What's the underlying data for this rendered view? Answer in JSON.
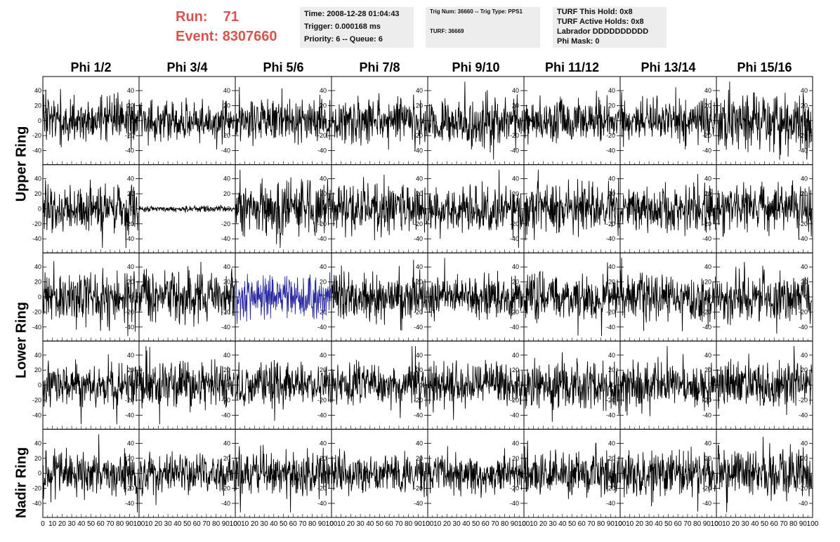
{
  "header": {
    "run_label": "Run:",
    "run_value": "71",
    "event_label": "Event:",
    "event_value": "8307660",
    "time": "Time: 2008-12-28 01:04:43",
    "trigger": "Trigger: 0.000168 ms",
    "priority": "Priority: 6 -- Queue: 6",
    "trig_num": "Trig Num: 36660 -- Trig Type: PPS1",
    "turf": "TURF: 36669",
    "turf_hold": "TURF This Hold: 0x8",
    "turf_active": "TURF Active Holds: 0x8",
    "labrador": "Labrador DDDDDDDDDD",
    "phi_mask": "Phi Mask: 0"
  },
  "columns": [
    "Phi 1/2",
    "Phi 3/4",
    "Phi 5/6",
    "Phi 7/8",
    "Phi 9/10",
    "Phi 11/12",
    "Phi 13/14",
    "Phi 15/16"
  ],
  "ring_labels": [
    "Upper Ring",
    "Lower Ring",
    "Nadir Ring"
  ],
  "colors": {
    "trace": "#000000",
    "highlight": "#2a2aa0",
    "run_text": "#d9534f",
    "info_bg": "#ededed"
  },
  "chart_data": {
    "type": "line",
    "description_rows": 5,
    "description_cols": 8,
    "xlim": [
      0,
      100
    ],
    "ylim": [
      -55,
      55
    ],
    "x_ticks": [
      0,
      10,
      20,
      30,
      40,
      50,
      60,
      70,
      80,
      90,
      100
    ],
    "y_ticks": [
      -40,
      -20,
      0,
      20,
      40
    ],
    "samples_per_trace": 260,
    "series": [
      {
        "amplitude": 15,
        "seed": 11
      },
      {
        "amplitude": 13,
        "seed": 12
      },
      {
        "amplitude": 14,
        "seed": 13
      },
      {
        "amplitude": 14,
        "seed": 14
      },
      {
        "amplitude": 17,
        "seed": 15
      },
      {
        "amplitude": 14,
        "seed": 16
      },
      {
        "amplitude": 14,
        "seed": 17
      },
      {
        "amplitude": 18,
        "seed": 18
      },
      {
        "amplitude": 17,
        "seed": 21
      },
      {
        "amplitude": 2,
        "seed": 22
      },
      {
        "amplitude": 17,
        "seed": 23
      },
      {
        "amplitude": 16,
        "seed": 24
      },
      {
        "amplitude": 15,
        "seed": 25
      },
      {
        "amplitude": 17,
        "seed": 26
      },
      {
        "amplitude": 16,
        "seed": 27
      },
      {
        "amplitude": 15,
        "seed": 28
      },
      {
        "amplitude": 17,
        "seed": 31
      },
      {
        "amplitude": 16,
        "seed": 32
      },
      {
        "amplitude": 14,
        "seed": 33,
        "highlight": true
      },
      {
        "amplitude": 15,
        "seed": 34
      },
      {
        "amplitude": 15,
        "seed": 35
      },
      {
        "amplitude": 15,
        "seed": 36
      },
      {
        "amplitude": 15,
        "seed": 37
      },
      {
        "amplitude": 15,
        "seed": 38
      },
      {
        "amplitude": 14,
        "seed": 41
      },
      {
        "amplitude": 15,
        "seed": 42
      },
      {
        "amplitude": 14,
        "seed": 43
      },
      {
        "amplitude": 14,
        "seed": 44
      },
      {
        "amplitude": 14,
        "seed": 45
      },
      {
        "amplitude": 15,
        "seed": 46
      },
      {
        "amplitude": 15,
        "seed": 47
      },
      {
        "amplitude": 15,
        "seed": 48
      },
      {
        "amplitude": 15,
        "seed": 51
      },
      {
        "amplitude": 13,
        "seed": 52
      },
      {
        "amplitude": 14,
        "seed": 53
      },
      {
        "amplitude": 13,
        "seed": 54
      },
      {
        "amplitude": 13,
        "seed": 55
      },
      {
        "amplitude": 15,
        "seed": 56
      },
      {
        "amplitude": 15,
        "seed": 57
      },
      {
        "amplitude": 15,
        "seed": 58
      }
    ]
  }
}
